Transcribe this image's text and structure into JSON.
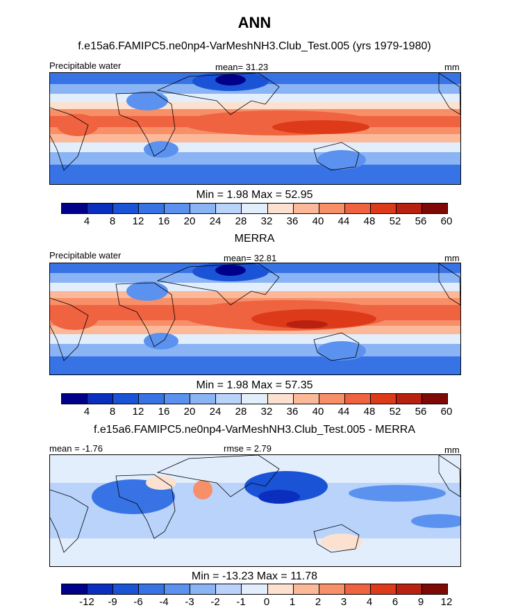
{
  "figure_title": "ANN",
  "colors": {
    "abs_scale": [
      "#00008b",
      "#0a2fbf",
      "#1a53d6",
      "#3873e6",
      "#5b92ef",
      "#8bb4f5",
      "#b9d3fb",
      "#e3eefc",
      "#fde1d0",
      "#fbb99a",
      "#f78f69",
      "#ef6340",
      "#dd3a1a",
      "#b8200f",
      "#7f0a05"
    ],
    "diff_scale": [
      "#00008b",
      "#0a2fbf",
      "#1a53d6",
      "#3873e6",
      "#5b92ef",
      "#8bb4f5",
      "#b9d3fb",
      "#e3eefc",
      "#fde1d0",
      "#fbb99a",
      "#f78f69",
      "#ef6340",
      "#dd3a1a",
      "#b8200f",
      "#7f0a05"
    ]
  },
  "chart_data": [
    {
      "type": "heatmap",
      "title": "f.e15a6.FAMIPC5.ne0np4-VarMeshNH3.Club_Test.005 (yrs 1979-1980)",
      "left_label": "Precipitable water",
      "center_label": "mean=  31.23",
      "right_label": "mm",
      "min_max": "Min =   1.98 Max =  52.95",
      "colorbar_ticks": [
        "4",
        "8",
        "12",
        "16",
        "20",
        "24",
        "28",
        "32",
        "36",
        "40",
        "44",
        "48",
        "52",
        "56",
        "60"
      ],
      "mean": 31.23,
      "min": 1.98,
      "max": 52.95
    },
    {
      "type": "heatmap",
      "title": "MERRA",
      "left_label": "Precipitable water",
      "center_label": "mean=  32.81",
      "right_label": "mm",
      "min_max": "Min =   1.98 Max =  57.35",
      "colorbar_ticks": [
        "4",
        "8",
        "12",
        "16",
        "20",
        "24",
        "28",
        "32",
        "36",
        "40",
        "44",
        "48",
        "52",
        "56",
        "60"
      ],
      "mean": 32.81,
      "min": 1.98,
      "max": 57.35
    },
    {
      "type": "heatmap",
      "title": "f.e15a6.FAMIPC5.ne0np4-VarMeshNH3.Club_Test.005 - MERRA",
      "left_label": "mean =  -1.76",
      "center_label": "rmse =   2.79",
      "right_label": "mm",
      "min_max": "Min = -13.23 Max =  11.78",
      "colorbar_ticks": [
        "-12",
        "-9",
        "-6",
        "-4",
        "-3",
        "-2",
        "-1",
        "0",
        "1",
        "2",
        "3",
        "4",
        "6",
        "9",
        "12"
      ],
      "mean": -1.76,
      "rmse": 2.79,
      "min": -13.23,
      "max": 11.78
    }
  ]
}
